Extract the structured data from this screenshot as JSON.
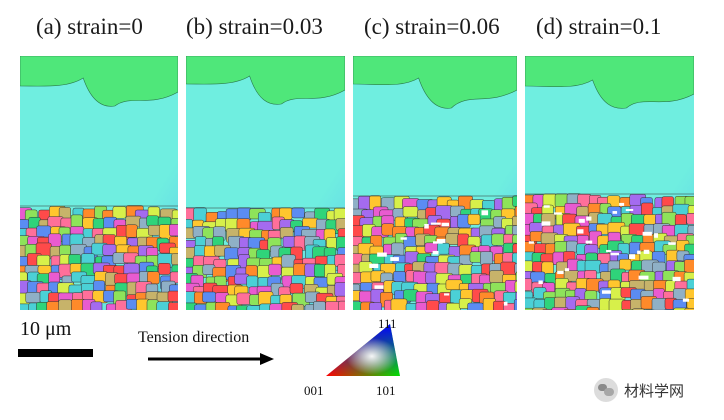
{
  "panels": [
    {
      "label": "(a) strain=0"
    },
    {
      "label": "(b) strain=0.03"
    },
    {
      "label": "(c) strain=0.06"
    },
    {
      "label": "(d) strain=0.1"
    }
  ],
  "scale_bar": {
    "label": "10 μm"
  },
  "tension": {
    "label": "Tension direction"
  },
  "ipf_legend": {
    "top": "111",
    "left": "001",
    "right": "101"
  },
  "watermark": {
    "text": "材料学网"
  },
  "colors": {
    "top_grain": "#4fe77a",
    "large_grain": "#6feee0",
    "large_grain_shade": "#5ecbea",
    "fine_grain_palette": [
      "#ff4a4a",
      "#ff8a2a",
      "#ffc62e",
      "#d7f04a",
      "#8ee35a",
      "#2fd47a",
      "#4bd0d6",
      "#5b8cf2",
      "#a46bef",
      "#e95bd0",
      "#ff6f9a",
      "#c7b36a",
      "#8fb0c6"
    ],
    "white_boundary": "#ffffff"
  }
}
